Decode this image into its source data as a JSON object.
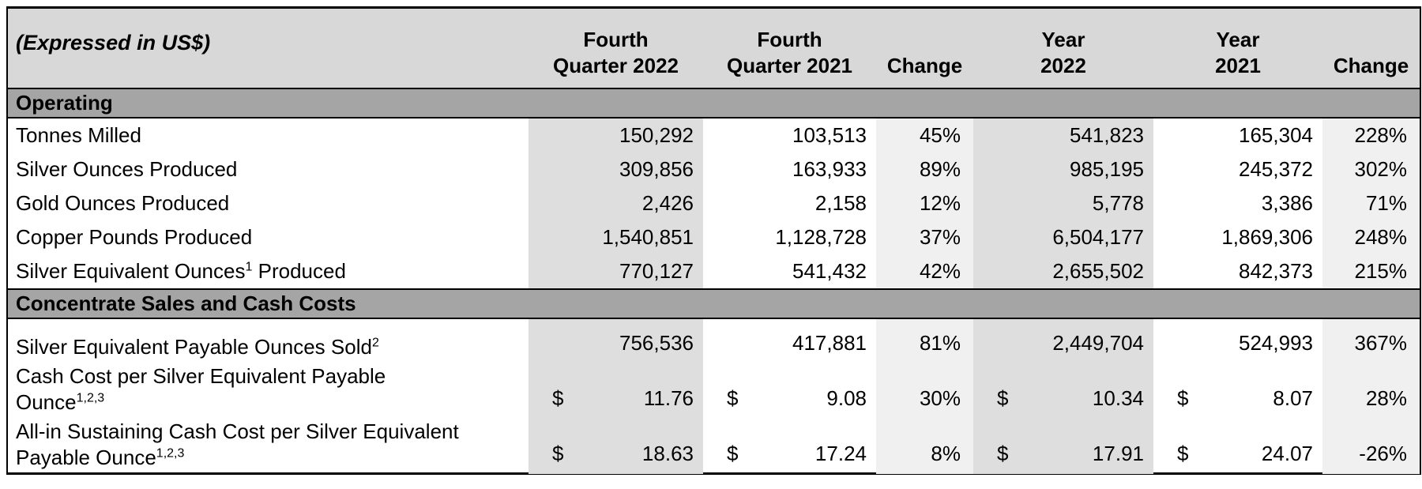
{
  "header": {
    "note": "(Expressed in US$)",
    "cols": [
      {
        "l1": "Fourth",
        "l2": "Quarter 2022"
      },
      {
        "l1": "Fourth",
        "l2": "Quarter 2021"
      },
      {
        "l1": "Change"
      },
      {
        "l1": "Year",
        "l2": "2022"
      },
      {
        "l1": "Year",
        "l2": "2021"
      },
      {
        "l1": "Change"
      }
    ]
  },
  "sections": [
    {
      "title": "Operating"
    },
    {
      "title": "Concentrate Sales and Cash Costs"
    }
  ],
  "rows": [
    {
      "label": [
        {
          "t": "Tonnes Milled"
        }
      ],
      "v": [
        {
          "n": "150,292"
        },
        {
          "n": "103,513"
        },
        {
          "n": "45%"
        },
        {
          "n": "541,823"
        },
        {
          "n": "165,304"
        },
        {
          "n": "228%"
        }
      ]
    },
    {
      "label": [
        {
          "t": "Silver Ounces Produced"
        }
      ],
      "v": [
        {
          "n": "309,856"
        },
        {
          "n": "163,933"
        },
        {
          "n": "89%"
        },
        {
          "n": "985,195"
        },
        {
          "n": "245,372"
        },
        {
          "n": "302%"
        }
      ]
    },
    {
      "label": [
        {
          "t": "Gold Ounces Produced"
        }
      ],
      "v": [
        {
          "n": "2,426"
        },
        {
          "n": "2,158"
        },
        {
          "n": "12%"
        },
        {
          "n": "5,778"
        },
        {
          "n": "3,386"
        },
        {
          "n": "71%"
        }
      ]
    },
    {
      "label": [
        {
          "t": "Copper Pounds Produced"
        }
      ],
      "v": [
        {
          "n": "1,540,851"
        },
        {
          "n": "1,128,728"
        },
        {
          "n": "37%"
        },
        {
          "n": "6,504,177"
        },
        {
          "n": "1,869,306"
        },
        {
          "n": "248%"
        }
      ]
    },
    {
      "label": [
        {
          "t": "Silver Equivalent Ounces",
          "s": "1",
          "t2": " Produced"
        }
      ],
      "v": [
        {
          "n": "770,127"
        },
        {
          "n": "541,432"
        },
        {
          "n": "42%"
        },
        {
          "n": "2,655,502"
        },
        {
          "n": "842,373"
        },
        {
          "n": "215%"
        }
      ]
    },
    {
      "label": [
        {
          "t": "Silver Equivalent Payable Ounces Sold",
          "s": "2"
        }
      ],
      "v": [
        {
          "n": "756,536"
        },
        {
          "n": "417,881"
        },
        {
          "n": "81%"
        },
        {
          "n": "2,449,704"
        },
        {
          "n": "524,993"
        },
        {
          "n": "367%"
        }
      ]
    },
    {
      "label": [
        {
          "t": "Cash Cost per Silver Equivalent Payable"
        },
        {
          "t": "Ounce",
          "s": "1,2,3"
        }
      ],
      "v": [
        {
          "c": "$",
          "n": "11.76"
        },
        {
          "c": "$",
          "n": "9.08"
        },
        {
          "n": "30%"
        },
        {
          "c": "$",
          "n": "10.34"
        },
        {
          "c": "$",
          "n": "8.07"
        },
        {
          "n": "28%"
        }
      ]
    },
    {
      "label": [
        {
          "t": "All-in Sustaining Cash Cost per Silver Equivalent"
        },
        {
          "t": "Payable Ounce",
          "s": "1,2,3"
        }
      ],
      "v": [
        {
          "c": "$",
          "n": "18.63"
        },
        {
          "c": "$",
          "n": "17.24"
        },
        {
          "n": "8%"
        },
        {
          "c": "$",
          "n": "17.91"
        },
        {
          "c": "$",
          "n": "24.07"
        },
        {
          "n": "-26%"
        }
      ]
    }
  ],
  "colors": {
    "header_bg": "#d8d8d8",
    "section_bar_bg": "#a5a5a5",
    "column_2022_shade": "#dedede",
    "column_change_shade": "#f0f0f0",
    "border": "#000000",
    "text": "#000000"
  }
}
